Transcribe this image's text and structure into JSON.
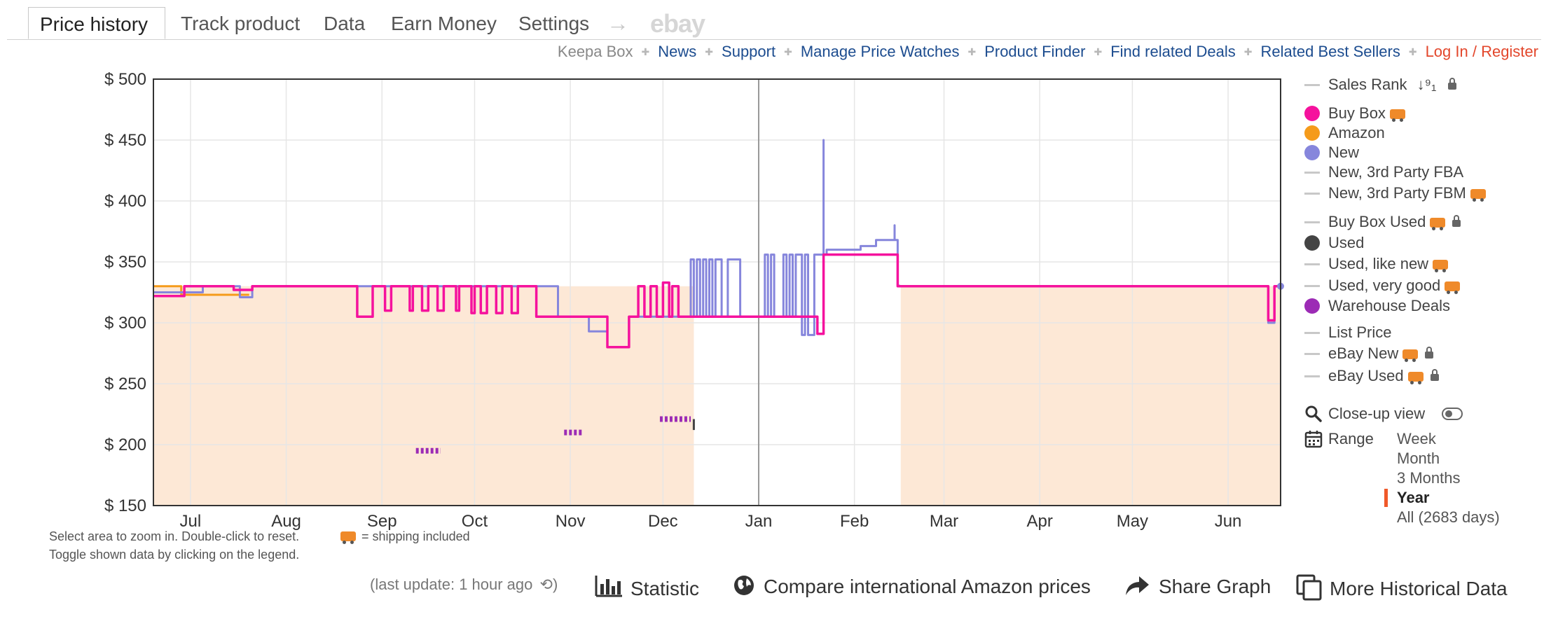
{
  "tabs": [
    {
      "label": "Price history",
      "active": true
    },
    {
      "label": "Track product",
      "active": false
    },
    {
      "label": "Data",
      "active": false
    },
    {
      "label": "Earn Money",
      "active": false
    },
    {
      "label": "Settings",
      "active": false
    }
  ],
  "tab_arrow": "→",
  "tab_ebay": "ebay",
  "links": {
    "keepa_box": "Keepa Box",
    "news": "News",
    "support": "Support",
    "manage_price_watches": "Manage Price Watches",
    "product_finder": "Product Finder",
    "find_related_deals": "Find related Deals",
    "related_best_sellers": "Related Best Sellers",
    "login": "Log In / Register"
  },
  "colors": {
    "buy_box": "#f5129d",
    "amazon": "#f59b1b",
    "new": "#8686dc",
    "used": "#444444",
    "warehouse": "#9c2bb5",
    "area_fill": "#fde8d6",
    "grid": "#e6e6e6",
    "selected_range": "#f0592a"
  },
  "legend": {
    "sales_rank": "Sales Rank",
    "buy_box": "Buy Box",
    "amazon": "Amazon",
    "new": "New",
    "new_3p_fba": "New, 3rd Party FBA",
    "new_3p_fbm": "New, 3rd Party FBM",
    "buy_box_used": "Buy Box Used",
    "used": "Used",
    "used_like_new": "Used, like new",
    "used_very_good": "Used, very good",
    "warehouse_deals": "Warehouse Deals",
    "list_price": "List Price",
    "ebay_new": "eBay New",
    "ebay_used": "eBay Used"
  },
  "closeup_view": "Close-up view",
  "range": {
    "label": "Range",
    "options": [
      "Week",
      "Month",
      "3 Months",
      "Year",
      "All (2683 days)"
    ],
    "selected": "Year"
  },
  "notes": {
    "zoom": "Select area to zoom in. Double-click to reset.",
    "shipping": "= shipping included",
    "toggle": "Toggle shown data by clicking on the legend."
  },
  "bottom": {
    "last_update": "(last update: 1 hour ago",
    "statistic": "Statistic",
    "compare": "Compare international Amazon prices",
    "share": "Share Graph",
    "more": "More Historical Data"
  },
  "chart_data": {
    "type": "line",
    "yticks": [
      "$ 500",
      "$ 450",
      "$ 400",
      "$ 350",
      "$ 300",
      "$ 250",
      "$ 200",
      "$ 150"
    ],
    "ylim": [
      150,
      500
    ],
    "xlim": [
      "2023-06-19",
      "2024-06-18"
    ],
    "xticks": [
      {
        "label": "Jul",
        "date": "2023-07-01"
      },
      {
        "label": "Aug",
        "date": "2023-08-01"
      },
      {
        "label": "Sep",
        "date": "2023-09-01"
      },
      {
        "label": "Oct",
        "date": "2023-10-01"
      },
      {
        "label": "Nov",
        "date": "2023-11-01"
      },
      {
        "label": "Dec",
        "date": "2023-12-01"
      },
      {
        "label": "Jan",
        "date": "2024-01-01"
      },
      {
        "label": "Feb",
        "date": "2024-02-01"
      },
      {
        "label": "Mar",
        "date": "2024-03-01"
      },
      {
        "label": "Apr",
        "date": "2024-04-01"
      },
      {
        "label": "May",
        "date": "2024-05-01"
      },
      {
        "label": "Jun",
        "date": "2024-06-01"
      }
    ],
    "vertical_marker": "2024-01-01",
    "grid": true,
    "series": [
      {
        "key": "amazon",
        "points": [
          [
            "2023-06-19",
            330
          ],
          [
            "2023-06-28",
            330
          ],
          [
            "2023-06-28",
            323
          ],
          [
            "2023-07-20",
            323
          ]
        ]
      },
      {
        "key": "new",
        "points": [
          [
            "2023-06-19",
            325
          ],
          [
            "2023-07-05",
            325
          ],
          [
            "2023-07-05",
            330
          ],
          [
            "2023-07-17",
            330
          ],
          [
            "2023-07-17",
            321
          ],
          [
            "2023-07-21",
            321
          ],
          [
            "2023-07-21",
            330
          ],
          [
            "2023-10-28",
            330
          ],
          [
            "2023-10-28",
            305
          ],
          [
            "2023-11-07",
            305
          ],
          [
            "2023-11-07",
            293
          ],
          [
            "2023-11-13",
            293
          ],
          [
            "2023-11-13",
            280
          ],
          [
            "2023-11-20",
            280
          ],
          [
            "2023-11-20",
            305
          ],
          [
            "2023-12-01",
            305
          ],
          [
            "2023-12-10",
            305
          ],
          [
            "2023-12-10",
            352
          ],
          [
            "2023-12-11",
            352
          ],
          [
            "2023-12-11",
            305
          ],
          [
            "2023-12-12",
            305
          ],
          [
            "2023-12-12",
            352
          ],
          [
            "2023-12-13",
            352
          ],
          [
            "2023-12-13",
            305
          ],
          [
            "2023-12-14",
            305
          ],
          [
            "2023-12-14",
            352
          ],
          [
            "2023-12-15",
            352
          ],
          [
            "2023-12-15",
            305
          ],
          [
            "2023-12-16",
            305
          ],
          [
            "2023-12-16",
            352
          ],
          [
            "2023-12-17",
            352
          ],
          [
            "2023-12-17",
            305
          ],
          [
            "2023-12-18",
            305
          ],
          [
            "2023-12-18",
            352
          ],
          [
            "2023-12-20",
            352
          ],
          [
            "2023-12-20",
            305
          ],
          [
            "2023-12-22",
            305
          ],
          [
            "2023-12-22",
            352
          ],
          [
            "2023-12-26",
            352
          ],
          [
            "2023-12-26",
            305
          ],
          [
            "2024-01-01",
            305
          ],
          [
            "2024-01-03",
            305
          ],
          [
            "2024-01-03",
            356
          ],
          [
            "2024-01-04",
            356
          ],
          [
            "2024-01-04",
            305
          ],
          [
            "2024-01-05",
            305
          ],
          [
            "2024-01-05",
            356
          ],
          [
            "2024-01-06",
            356
          ],
          [
            "2024-01-06",
            305
          ],
          [
            "2024-01-09",
            305
          ],
          [
            "2024-01-09",
            356
          ],
          [
            "2024-01-10",
            356
          ],
          [
            "2024-01-10",
            305
          ],
          [
            "2024-01-11",
            305
          ],
          [
            "2024-01-11",
            356
          ],
          [
            "2024-01-12",
            356
          ],
          [
            "2024-01-12",
            305
          ],
          [
            "2024-01-13",
            305
          ],
          [
            "2024-01-13",
            356
          ],
          [
            "2024-01-15",
            356
          ],
          [
            "2024-01-15",
            290
          ],
          [
            "2024-01-16",
            290
          ],
          [
            "2024-01-16",
            356
          ],
          [
            "2024-01-17",
            356
          ],
          [
            "2024-01-17",
            290
          ],
          [
            "2024-01-19",
            290
          ],
          [
            "2024-01-19",
            356
          ],
          [
            "2024-01-22",
            356
          ],
          [
            "2024-01-22",
            450
          ],
          [
            "2024-01-22",
            356
          ],
          [
            "2024-01-23",
            356
          ],
          [
            "2024-01-23",
            360
          ],
          [
            "2024-02-03",
            360
          ],
          [
            "2024-02-03",
            363
          ],
          [
            "2024-02-08",
            363
          ],
          [
            "2024-02-08",
            368
          ],
          [
            "2024-02-14",
            368
          ],
          [
            "2024-02-14",
            380
          ],
          [
            "2024-02-14",
            368
          ],
          [
            "2024-02-15",
            368
          ],
          [
            "2024-02-15",
            331
          ],
          [
            "2024-02-16",
            330
          ],
          [
            "2024-06-14",
            330
          ],
          [
            "2024-06-14",
            300
          ],
          [
            "2024-06-16",
            300
          ],
          [
            "2024-06-16",
            330
          ],
          [
            "2024-06-18",
            330
          ]
        ]
      },
      {
        "key": "buy_box",
        "points": [
          [
            "2023-06-19",
            322
          ],
          [
            "2023-06-29",
            322
          ],
          [
            "2023-06-29",
            330
          ],
          [
            "2023-07-15",
            330
          ],
          [
            "2023-07-15",
            327
          ],
          [
            "2023-07-21",
            327
          ],
          [
            "2023-07-21",
            330
          ],
          [
            "2023-08-24",
            330
          ],
          [
            "2023-08-24",
            305
          ],
          [
            "2023-08-29",
            305
          ],
          [
            "2023-08-29",
            330
          ],
          [
            "2023-09-02",
            330
          ],
          [
            "2023-09-02",
            310
          ],
          [
            "2023-09-04",
            310
          ],
          [
            "2023-09-04",
            330
          ],
          [
            "2023-09-10",
            330
          ],
          [
            "2023-09-10",
            310
          ],
          [
            "2023-09-11",
            310
          ],
          [
            "2023-09-11",
            330
          ],
          [
            "2023-09-14",
            330
          ],
          [
            "2023-09-14",
            310
          ],
          [
            "2023-09-16",
            310
          ],
          [
            "2023-09-16",
            330
          ],
          [
            "2023-09-19",
            330
          ],
          [
            "2023-09-19",
            310
          ],
          [
            "2023-09-21",
            310
          ],
          [
            "2023-09-21",
            330
          ],
          [
            "2023-09-25",
            330
          ],
          [
            "2023-09-25",
            310
          ],
          [
            "2023-09-26",
            310
          ],
          [
            "2023-09-26",
            330
          ],
          [
            "2023-09-30",
            330
          ],
          [
            "2023-09-30",
            308
          ],
          [
            "2023-10-01",
            308
          ],
          [
            "2023-10-01",
            330
          ],
          [
            "2023-10-03",
            330
          ],
          [
            "2023-10-03",
            308
          ],
          [
            "2023-10-05",
            308
          ],
          [
            "2023-10-05",
            330
          ],
          [
            "2023-10-08",
            330
          ],
          [
            "2023-10-08",
            308
          ],
          [
            "2023-10-10",
            308
          ],
          [
            "2023-10-10",
            330
          ],
          [
            "2023-10-13",
            330
          ],
          [
            "2023-10-13",
            308
          ],
          [
            "2023-10-15",
            308
          ],
          [
            "2023-10-15",
            330
          ],
          [
            "2023-10-21",
            330
          ],
          [
            "2023-10-21",
            305
          ],
          [
            "2023-11-13",
            305
          ],
          [
            "2023-11-13",
            280
          ],
          [
            "2023-11-20",
            280
          ],
          [
            "2023-11-20",
            305
          ],
          [
            "2023-11-23",
            305
          ],
          [
            "2023-11-23",
            330
          ],
          [
            "2023-11-25",
            330
          ],
          [
            "2023-11-25",
            305
          ],
          [
            "2023-11-27",
            305
          ],
          [
            "2023-11-27",
            330
          ],
          [
            "2023-11-29",
            330
          ],
          [
            "2023-11-29",
            305
          ],
          [
            "2023-12-01",
            305
          ],
          [
            "2023-12-01",
            333
          ],
          [
            "2023-12-03",
            333
          ],
          [
            "2023-12-03",
            305
          ],
          [
            "2023-12-04",
            305
          ],
          [
            "2023-12-04",
            330
          ],
          [
            "2023-12-06",
            330
          ],
          [
            "2023-12-06",
            305
          ],
          [
            "2024-01-20",
            305
          ],
          [
            "2024-01-20",
            291
          ],
          [
            "2024-01-22",
            291
          ],
          [
            "2024-01-22",
            356
          ],
          [
            "2024-02-15",
            356
          ],
          [
            "2024-02-15",
            330
          ],
          [
            "2024-06-14",
            330
          ],
          [
            "2024-06-14",
            302
          ],
          [
            "2024-06-16",
            302
          ],
          [
            "2024-06-16",
            330
          ],
          [
            "2024-06-18",
            330
          ]
        ]
      },
      {
        "key": "warehouse",
        "points": [
          [
            "2023-09-12",
            195
          ],
          [
            "2023-09-20",
            195
          ],
          [
            "2023-10-30",
            210
          ],
          [
            "2023-11-05",
            210
          ],
          [
            "2023-11-30",
            221
          ],
          [
            "2023-12-10",
            221
          ]
        ]
      },
      {
        "key": "used",
        "points": [
          [
            "2023-12-11",
            221
          ],
          [
            "2023-12-11",
            212
          ]
        ]
      }
    ],
    "area_ranges": [
      [
        "2023-06-19",
        "2023-12-11",
        330
      ],
      [
        "2024-02-16",
        "2024-06-18",
        330
      ]
    ]
  }
}
